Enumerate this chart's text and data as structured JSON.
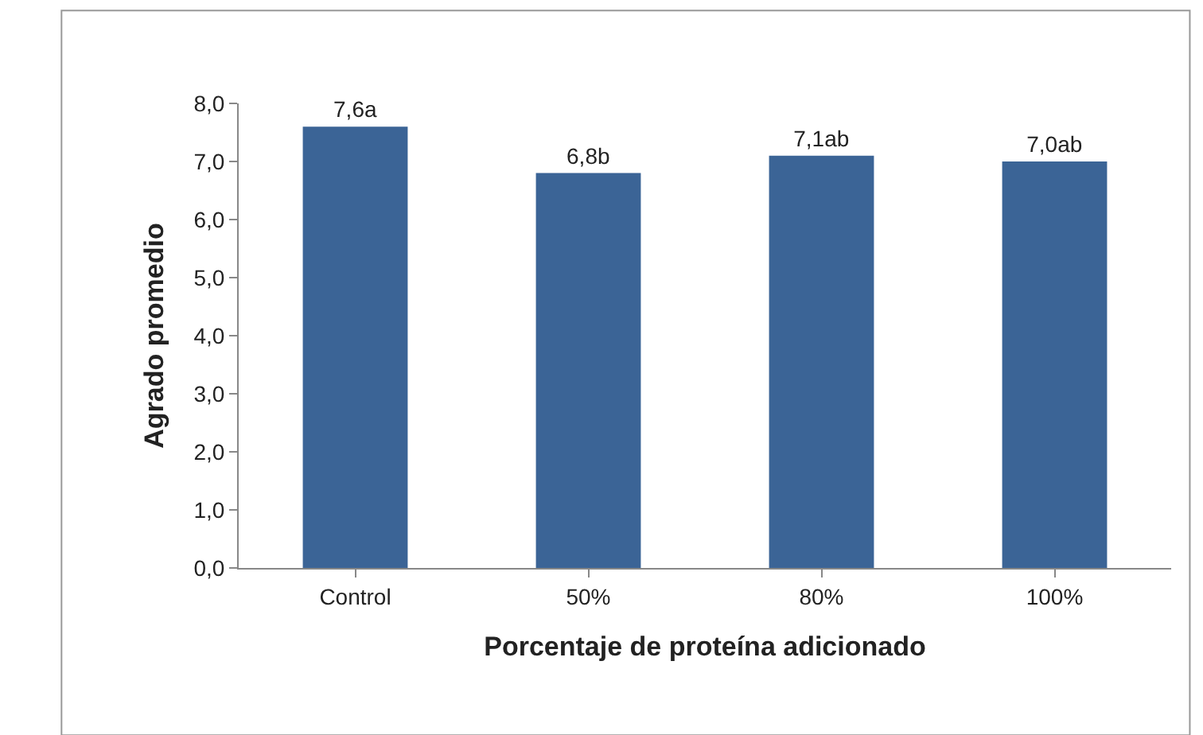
{
  "chart_data": {
    "type": "bar",
    "xlabel": "Porcentaje de proteína adicionado",
    "ylabel": "Agrado promedio",
    "categories": [
      "Control",
      "50%",
      "80%",
      "100%"
    ],
    "values": [
      7.6,
      6.8,
      7.1,
      7.0
    ],
    "value_labels": [
      "7,6a",
      "6,8b",
      "7,1ab",
      "7,0ab"
    ],
    "color": "#3b6496",
    "ylim": [
      0,
      8
    ],
    "yticks": [
      {
        "value": 0,
        "label": "0,0"
      },
      {
        "value": 1,
        "label": "1,0"
      },
      {
        "value": 2,
        "label": "2,0"
      },
      {
        "value": 3,
        "label": "3,0"
      },
      {
        "value": 4,
        "label": "4,0"
      },
      {
        "value": 5,
        "label": "5,0"
      },
      {
        "value": 6,
        "label": "6,0"
      },
      {
        "value": 7,
        "label": "7,0"
      },
      {
        "value": 8,
        "label": "8,0"
      }
    ],
    "legend": false
  }
}
